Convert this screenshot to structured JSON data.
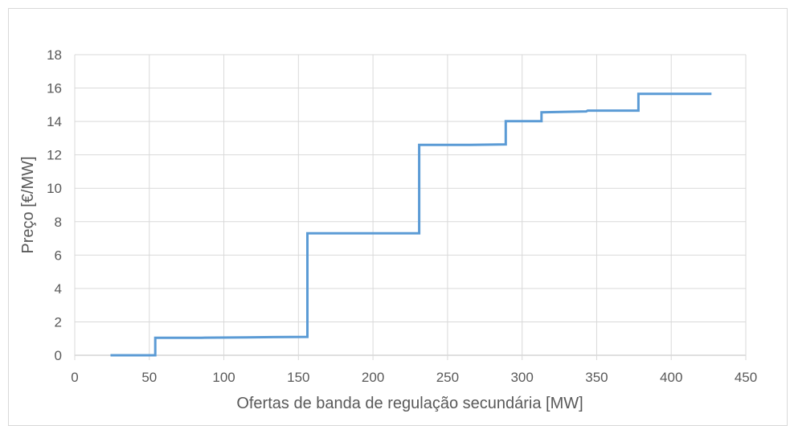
{
  "chart_data": {
    "type": "line",
    "subtype": "step",
    "title": "",
    "xlabel": "Ofertas de banda de regulação secundária [MW]",
    "ylabel": "Preço [€/MW]",
    "xlim": [
      0,
      450
    ],
    "ylim": [
      0,
      18
    ],
    "xticks": [
      "0",
      "50",
      "100",
      "150",
      "200",
      "250",
      "300",
      "350",
      "400",
      "450"
    ],
    "yticks": [
      "0",
      "2",
      "4",
      "6",
      "8",
      "10",
      "12",
      "14",
      "16",
      "18"
    ],
    "grid": true,
    "legend": "none",
    "series": [
      {
        "color": "#5b9bd5",
        "points": [
          [
            24,
            0
          ],
          [
            54,
            0
          ],
          [
            54,
            1.05
          ],
          [
            85,
            1.05
          ],
          [
            115,
            1.07
          ],
          [
            133,
            1.09
          ],
          [
            156,
            1.1
          ],
          [
            156,
            7.3
          ],
          [
            231,
            7.3
          ],
          [
            231,
            12.6
          ],
          [
            265,
            12.6
          ],
          [
            289,
            12.63
          ],
          [
            289,
            14.02
          ],
          [
            313,
            14.02
          ],
          [
            313,
            14.55
          ],
          [
            343,
            14.6
          ],
          [
            344,
            14.65
          ],
          [
            378,
            14.65
          ],
          [
            378,
            15.65
          ],
          [
            427,
            15.65
          ]
        ]
      }
    ]
  }
}
